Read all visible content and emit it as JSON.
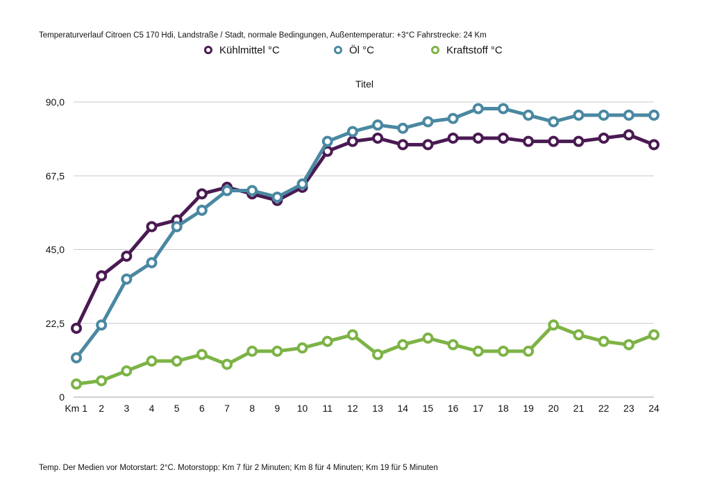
{
  "header_text": "Temperaturverlauf Citroen C5 170 Hdi, Landstraße / Stadt, normale Bedingungen, Außentemperatur: +3°C Fahrstrecke: 24 Km",
  "footnote_text": "Temp. Der Medien vor Motorstart: 2°C.  Motorstopp: Km 7 für 2 Minuten; Km 8 für 4 Minuten; Km 19 für 5 Minuten",
  "chart_data": {
    "type": "line",
    "title": "Titel",
    "categories": [
      "Km 1",
      "2",
      "3",
      "4",
      "5",
      "6",
      "7",
      "8",
      "9",
      "10",
      "11",
      "12",
      "13",
      "14",
      "15",
      "16",
      "17",
      "18",
      "19",
      "20",
      "21",
      "22",
      "23",
      "24"
    ],
    "y_tick_labels": [
      "0",
      "22,5",
      "45,0",
      "67,5",
      "90,0"
    ],
    "ylim": [
      0,
      90
    ],
    "grid": true,
    "legend_position": "top",
    "series": [
      {
        "name": "Kühlmittel °C",
        "color": "#4a1a52",
        "values": [
          21,
          37,
          43,
          52,
          54,
          62,
          64,
          62,
          60,
          64,
          75,
          78,
          79,
          77,
          77,
          79,
          79,
          79,
          78,
          78,
          78,
          79,
          80,
          77
        ]
      },
      {
        "name": "Öl °C",
        "color": "#4a88a2",
        "values": [
          12,
          22,
          36,
          41,
          52,
          57,
          63,
          63,
          61,
          65,
          78,
          81,
          83,
          82,
          84,
          85,
          88,
          88,
          86,
          84,
          86,
          86,
          86,
          86
        ]
      },
      {
        "name": "Kraftstoff °C",
        "color": "#7db346",
        "values": [
          4,
          5,
          8,
          11,
          11,
          13,
          10,
          14,
          14,
          15,
          17,
          19,
          13,
          16,
          18,
          16,
          14,
          14,
          14,
          22,
          19,
          17,
          16,
          19
        ]
      }
    ]
  }
}
